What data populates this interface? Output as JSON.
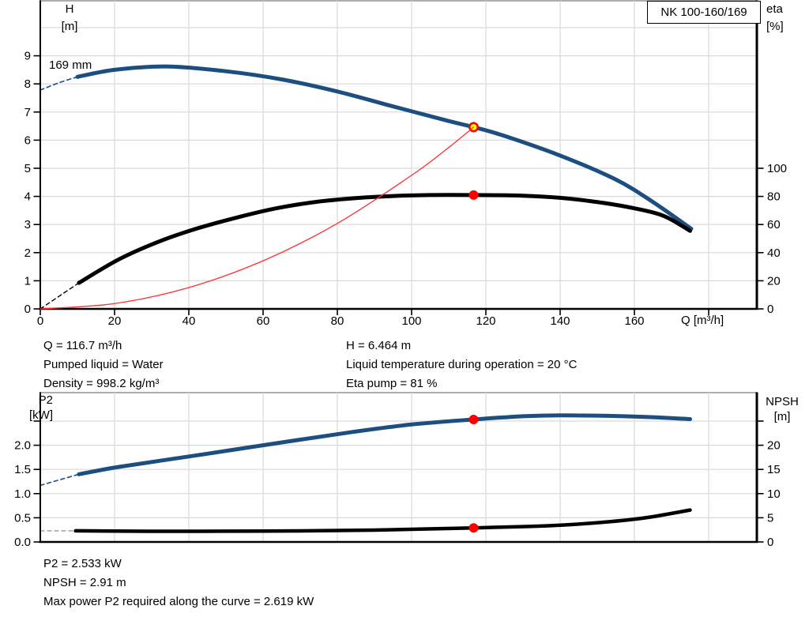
{
  "model_box": "NK 100-160/169",
  "impeller_label": "169 mm",
  "colors": {
    "curve_blue": "#1c4e80",
    "curve_black": "#000000",
    "system_red": "#ff3030",
    "marker_red": "#ff0000",
    "marker_yellow": "#ffff00",
    "grid": "#d9d9d9",
    "frame_gray": "#adadad",
    "npsh_dash_gray": "#999999"
  },
  "top_annotations": {
    "col1": [
      "Q = 116.7 m³/h",
      "Pumped liquid = Water",
      "Density = 998.2 kg/m³"
    ],
    "col2": [
      "H = 6.464 m",
      "Liquid temperature during operation = 20 °C",
      "Eta pump = 81 %"
    ]
  },
  "bottom_annotations": [
    "P2 = 2.533 kW",
    "NPSH = 2.91 m",
    "Max power P2 required along the curve = 2.619 kW"
  ],
  "chart_data": [
    {
      "type": "line",
      "name": "head-efficiency-chart",
      "x_axis": {
        "label": "Q [m³/h]",
        "grid": [
          20,
          40,
          60,
          80,
          100,
          120,
          140,
          160,
          180
        ],
        "tick_values": [
          0,
          20,
          40,
          60,
          80,
          100,
          120,
          140,
          160,
          180
        ],
        "tick_labels": [
          "0",
          "20",
          "40",
          "60",
          "80",
          "100",
          "120",
          "140",
          "160",
          ""
        ]
      },
      "left_axis": {
        "label": [
          "H",
          "[m]"
        ],
        "grid": [
          1,
          2,
          3,
          4,
          5,
          6,
          7,
          8,
          9,
          10
        ],
        "tick_values": [
          0,
          1,
          2,
          3,
          4,
          5,
          6,
          7,
          8,
          9
        ],
        "tick_labels": [
          "0",
          "1",
          "2",
          "3",
          "4",
          "5",
          "6",
          "7",
          "8",
          "9"
        ]
      },
      "right_axis": {
        "label": [
          "eta",
          "[%]"
        ],
        "tick_values": [
          0,
          20,
          40,
          60,
          80,
          100
        ],
        "tick_labels": [
          "0",
          "20",
          "40",
          "60",
          "80",
          "100"
        ]
      },
      "series": [
        {
          "name": "head-curve-dashed",
          "axis": "left",
          "color": "#1c4e80",
          "width": 1.6,
          "dash": "5,4",
          "points": [
            [
              0,
              7.78
            ],
            [
              5,
              8.04
            ],
            [
              10,
              8.25
            ]
          ]
        },
        {
          "name": "head-curve-169mm",
          "axis": "left",
          "color": "#1c4e80",
          "width": 5,
          "points": [
            [
              10,
              8.25
            ],
            [
              20,
              8.5
            ],
            [
              34,
              8.62
            ],
            [
              50,
              8.45
            ],
            [
              65,
              8.16
            ],
            [
              80,
              7.73
            ],
            [
              95,
              7.2
            ],
            [
              110,
              6.68
            ],
            [
              116.7,
              6.464
            ],
            [
              125,
              6.15
            ],
            [
              140,
              5.45
            ],
            [
              155,
              4.6
            ],
            [
              165,
              3.8
            ],
            [
              175.3,
              2.85
            ]
          ]
        },
        {
          "name": "efficiency-curve-dashed",
          "axis": "right",
          "color": "#000000",
          "width": 1.4,
          "dash": "5,4",
          "points": [
            [
              0,
              0
            ],
            [
              10.4,
              18.5
            ]
          ]
        },
        {
          "name": "efficiency-curve",
          "axis": "right",
          "color": "#000000",
          "width": 5,
          "points": [
            [
              10.4,
              18.5
            ],
            [
              21,
              35
            ],
            [
              31.6,
              47.5
            ],
            [
              42,
              57
            ],
            [
              53,
              65
            ],
            [
              63.5,
              71.5
            ],
            [
              74,
              76
            ],
            [
              85,
              78.8
            ],
            [
              95,
              80.3
            ],
            [
              105,
              81
            ],
            [
              116.7,
              81
            ],
            [
              130,
              80.5
            ],
            [
              140,
              79
            ],
            [
              150,
              76
            ],
            [
              160,
              71.5
            ],
            [
              168,
              66
            ],
            [
              175,
              55.5
            ]
          ]
        },
        {
          "name": "system-curve",
          "axis": "left",
          "color": "#ff3030",
          "width": 1.3,
          "on_top": true,
          "points": [
            [
              0,
              0
            ],
            [
              20,
              0.19
            ],
            [
              40,
              0.76
            ],
            [
              60,
              1.71
            ],
            [
              80,
              3.04
            ],
            [
              100,
              4.75
            ],
            [
              110,
              5.74
            ],
            [
              116.7,
              6.464
            ]
          ]
        }
      ],
      "markers": [
        {
          "name": "duty-point",
          "axis": "left",
          "x": 116.7,
          "y": 6.464,
          "style": "ring",
          "fill": "#ffff00",
          "stroke": "#ff0000"
        },
        {
          "name": "efficiency-point",
          "axis": "right",
          "x": 116.7,
          "y": 81,
          "style": "dot",
          "fill": "#ff0000"
        }
      ]
    },
    {
      "type": "line",
      "name": "power-npsh-chart",
      "x_axis": {
        "label": "",
        "grid": [
          20,
          40,
          60,
          80,
          100,
          120,
          140,
          160,
          180
        ],
        "tick_values": [],
        "tick_labels": []
      },
      "left_axis": {
        "label": [
          "P2",
          "[kW]"
        ],
        "grid": [
          0.5,
          1,
          1.5,
          2,
          2.5
        ],
        "tick_values": [
          0,
          0.5,
          1,
          1.5,
          2,
          2.5
        ],
        "tick_labels": [
          "0.0",
          "0.5",
          "1.0",
          "1.5",
          "2.0",
          ""
        ]
      },
      "right_axis": {
        "label": [
          "NPSH",
          "[m]"
        ],
        "tick_values": [
          0,
          5,
          10,
          15,
          20,
          25
        ],
        "tick_labels": [
          "0",
          "5",
          "10",
          "15",
          "20",
          ""
        ]
      },
      "series": [
        {
          "name": "p2-curve-dashed",
          "axis": "left",
          "color": "#1c4e80",
          "width": 1.6,
          "dash": "5,4",
          "points": [
            [
              0,
              1.17
            ],
            [
              10.4,
              1.4
            ]
          ]
        },
        {
          "name": "p2-curve",
          "axis": "left",
          "color": "#1c4e80",
          "width": 5,
          "points": [
            [
              10.4,
              1.4
            ],
            [
              21,
              1.55
            ],
            [
              42,
              1.79
            ],
            [
              63.5,
              2.04
            ],
            [
              84.6,
              2.28
            ],
            [
              100,
              2.43
            ],
            [
              116.7,
              2.533
            ],
            [
              130,
              2.6
            ],
            [
              140,
              2.619
            ],
            [
              155,
              2.605
            ],
            [
              165,
              2.58
            ],
            [
              175,
              2.54
            ]
          ]
        },
        {
          "name": "npsh-curve-dashed",
          "axis": "right",
          "color": "#999999",
          "width": 1.4,
          "dash": "5,4",
          "points": [
            [
              0,
              2.3
            ],
            [
              9.5,
              2.3
            ]
          ]
        },
        {
          "name": "npsh-curve",
          "axis": "right",
          "color": "#000000",
          "width": 4.5,
          "points": [
            [
              9.5,
              2.3
            ],
            [
              30,
              2.2
            ],
            [
              60,
              2.25
            ],
            [
              90,
              2.45
            ],
            [
              116.7,
              2.91
            ],
            [
              138,
              3.4
            ],
            [
              152,
              4.1
            ],
            [
              163,
              5.0
            ],
            [
              175,
              6.6
            ]
          ]
        }
      ],
      "markers": [
        {
          "name": "p2-point",
          "axis": "left",
          "x": 116.7,
          "y": 2.533,
          "style": "dot",
          "fill": "#ff0000"
        },
        {
          "name": "npsh-point",
          "axis": "right",
          "x": 116.7,
          "y": 2.91,
          "style": "dot",
          "fill": "#ff0000"
        }
      ]
    }
  ]
}
